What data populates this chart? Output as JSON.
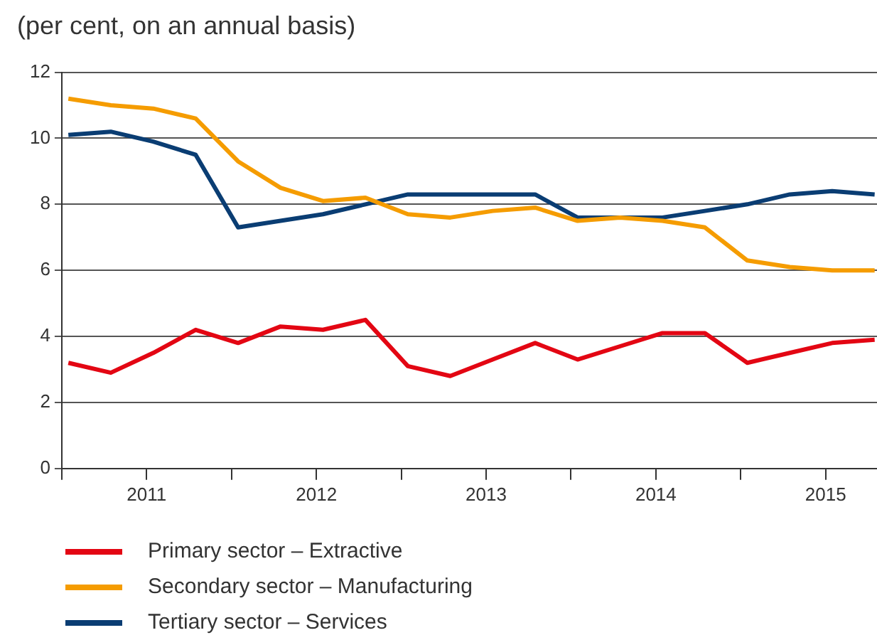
{
  "chart_data": {
    "type": "line",
    "title": "(per cent, on an annual basis)",
    "x": [
      "2011-01-15",
      "2011-04-15",
      "2011-07-15",
      "2011-10-15",
      "2012-01-15",
      "2012-04-15",
      "2012-07-15",
      "2012-10-15",
      "2013-01-15",
      "2013-04-15",
      "2013-07-15",
      "2013-10-15",
      "2014-01-15",
      "2014-04-15",
      "2014-07-15",
      "2014-10-15",
      "2015-01-15",
      "2015-04-15",
      "2015-07-15",
      "2015-10-15"
    ],
    "xlim": [
      "2011-01-01",
      "2015-10-20"
    ],
    "xticks": [
      {
        "value": "2011-01-01",
        "label": null
      },
      {
        "value": "2011-07-01",
        "label": "2011"
      },
      {
        "value": "2012-01-01",
        "label": null
      },
      {
        "value": "2012-07-01",
        "label": "2012"
      },
      {
        "value": "2013-01-01",
        "label": null
      },
      {
        "value": "2013-07-01",
        "label": "2013"
      },
      {
        "value": "2014-01-01",
        "label": null
      },
      {
        "value": "2014-07-01",
        "label": "2014"
      },
      {
        "value": "2015-01-01",
        "label": null
      },
      {
        "value": "2015-07-01",
        "label": "2015"
      }
    ],
    "series": [
      {
        "name": "Primary sector – Extractive",
        "color": "#e30613",
        "values": [
          3.2,
          2.9,
          3.5,
          4.2,
          3.8,
          4.3,
          4.2,
          4.5,
          3.1,
          2.8,
          3.3,
          3.8,
          3.3,
          3.7,
          4.1,
          4.1,
          3.2,
          3.5,
          3.8,
          3.9
        ]
      },
      {
        "name": "Secondary sector – Manufacturing",
        "color": "#f59c00",
        "values": [
          11.2,
          11.0,
          10.9,
          10.6,
          9.3,
          8.5,
          8.1,
          8.2,
          7.7,
          7.6,
          7.8,
          7.9,
          7.5,
          7.6,
          7.5,
          7.3,
          6.3,
          6.1,
          6.0,
          6.0
        ]
      },
      {
        "name": "Tertiary sector – Services",
        "color": "#0a3d73",
        "values": [
          10.1,
          10.2,
          9.9,
          9.5,
          7.3,
          7.5,
          7.7,
          8.0,
          8.3,
          8.3,
          8.3,
          8.3,
          7.6,
          7.6,
          7.6,
          7.8,
          8.0,
          8.3,
          8.4,
          8.3
        ]
      }
    ],
    "ylim": [
      0,
      12
    ],
    "yticks": [
      0,
      2,
      4,
      6,
      8,
      10,
      12
    ],
    "grid": "y",
    "legend": "bottom",
    "marker": "none",
    "line_style": "solid"
  }
}
